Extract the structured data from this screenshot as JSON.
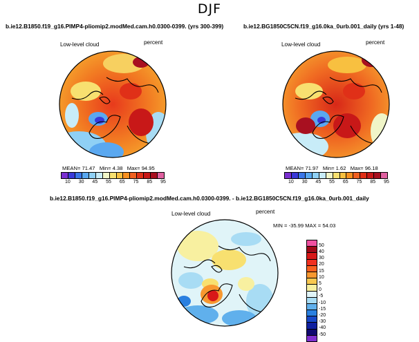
{
  "title": "DJF",
  "panels": [
    {
      "case": "b.ie12.B1850.f19_g16.PIMP4-pliomip2.modMed.cam.h0.0300-0399. (yrs 300-399)",
      "variable": "Low-level cloud",
      "units": "percent",
      "stats": {
        "mean_label": "MEAN=",
        "mean": "71.47",
        "min_label": "Min=",
        "min": "4.38",
        "max_label": "Max=",
        "max": "94.95"
      }
    },
    {
      "case": "b.ie12.BG1850C5CN.f19_g16.0ka_0urb.001_daily (yrs 1-48)",
      "variable": "Low-level cloud",
      "units": "percent",
      "stats": {
        "mean_label": "MEAN=",
        "mean": "71.97",
        "min_label": "Min=",
        "min": "1.62",
        "max_label": "Max=",
        "max": "96.18"
      }
    },
    {
      "case": "b.ie12.B1850.f19_g16.PIMP4-pliomip2.modMed.cam.h0.0300-0399. - b.ie12.BG1850C5CN.f19_g16.0ka_0urb.001_daily",
      "variable": "Low-level cloud",
      "units": "percent",
      "stats_text": "MIN = -35.99  MAX =  54.03"
    }
  ],
  "abs_colorbar": {
    "ticks": [
      "10",
      "30",
      "45",
      "55",
      "65",
      "75",
      "85",
      "95"
    ],
    "colors": [
      "#7a2fd0",
      "#3a3ad8",
      "#3a76e8",
      "#5aa8f0",
      "#8fd0f5",
      "#c8ecf8",
      "#f0f5c8",
      "#f8e070",
      "#f8c040",
      "#f89020",
      "#f06020",
      "#e03018",
      "#c81818",
      "#a81020",
      "#e060a0"
    ]
  },
  "diff_colorbar": {
    "ticks": [
      "50",
      "40",
      "30",
      "20",
      "15",
      "10",
      "5",
      "0",
      "-5",
      "-10",
      "-15",
      "-20",
      "-30",
      "-40",
      "-50"
    ],
    "colors": [
      "#f050a0",
      "#a00818",
      "#d81818",
      "#f03020",
      "#f86020",
      "#f89830",
      "#f8c850",
      "#f8f0a0",
      "#e0f4f8",
      "#a8dcf4",
      "#60b0ec",
      "#2a80e0",
      "#1848c8",
      "#1020a0",
      "#100a70",
      "#8030d0"
    ]
  }
}
